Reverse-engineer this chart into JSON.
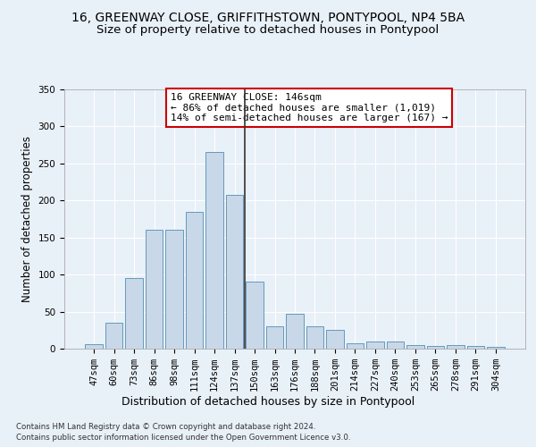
{
  "title": "16, GREENWAY CLOSE, GRIFFITHSTOWN, PONTYPOOL, NP4 5BA",
  "subtitle": "Size of property relative to detached houses in Pontypool",
  "xlabel": "Distribution of detached houses by size in Pontypool",
  "ylabel": "Number of detached properties",
  "categories": [
    "47sqm",
    "60sqm",
    "73sqm",
    "86sqm",
    "98sqm",
    "111sqm",
    "124sqm",
    "137sqm",
    "150sqm",
    "163sqm",
    "176sqm",
    "188sqm",
    "201sqm",
    "214sqm",
    "227sqm",
    "240sqm",
    "253sqm",
    "265sqm",
    "278sqm",
    "291sqm",
    "304sqm"
  ],
  "values": [
    6,
    35,
    95,
    160,
    160,
    185,
    265,
    208,
    90,
    30,
    47,
    30,
    25,
    7,
    10,
    10,
    5,
    4,
    5,
    4,
    3
  ],
  "bar_color": "#c8d8e8",
  "bar_edge_color": "#6699bb",
  "vline_x": 7.5,
  "vline_color": "#333333",
  "annotation_text": "16 GREENWAY CLOSE: 146sqm\n← 86% of detached houses are smaller (1,019)\n14% of semi-detached houses are larger (167) →",
  "annotation_box_color": "#ffffff",
  "annotation_box_edge_color": "#cc0000",
  "footer_line1": "Contains HM Land Registry data © Crown copyright and database right 2024.",
  "footer_line2": "Contains public sector information licensed under the Open Government Licence v3.0.",
  "bg_color": "#e8f0f8",
  "plot_bg_color": "#e8f0f8",
  "ylim": [
    0,
    350
  ],
  "yticks": [
    0,
    50,
    100,
    150,
    200,
    250,
    300,
    350
  ],
  "title_fontsize": 10,
  "subtitle_fontsize": 9.5,
  "tick_fontsize": 7.5,
  "ylabel_fontsize": 8.5,
  "xlabel_fontsize": 9,
  "annotation_fontsize": 8,
  "footer_fontsize": 6.2
}
